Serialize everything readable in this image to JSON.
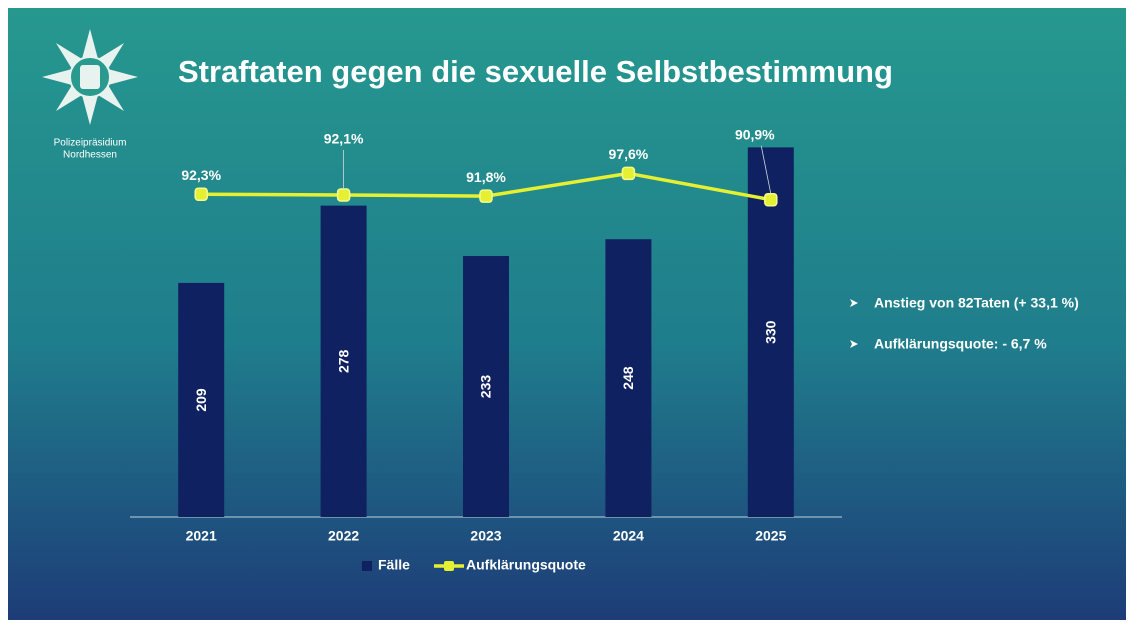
{
  "header": {
    "organization": [
      "Polizeipräsidium",
      "Nordhessen"
    ]
  },
  "chart_data": {
    "type": "bar",
    "title": "Straftaten gegen die sexuelle Selbstbestimmung",
    "categories": [
      "2021",
      "2022",
      "2023",
      "2024",
      "2025"
    ],
    "series": [
      {
        "name": "Fälle",
        "type": "bar",
        "color": "#0f2160",
        "values": [
          209,
          278,
          233,
          248,
          330
        ]
      },
      {
        "name": "Aufklärungsquote",
        "type": "line",
        "axis": "y2",
        "color": "#e6f032",
        "values": [
          92.3,
          92.1,
          91.8,
          97.6,
          90.9
        ],
        "value_labels": [
          "92,3%",
          "92,1%",
          "91,8%",
          "97,6%",
          "90,9%"
        ]
      }
    ],
    "ylim": [
      0,
      350
    ],
    "y2lim": [
      10,
      100
    ],
    "legend": "bottom",
    "annotations": [
      "Anstieg von 82Taten (+ 33,1 %)",
      "Aufklärungsquote: - 6,7 %"
    ]
  }
}
